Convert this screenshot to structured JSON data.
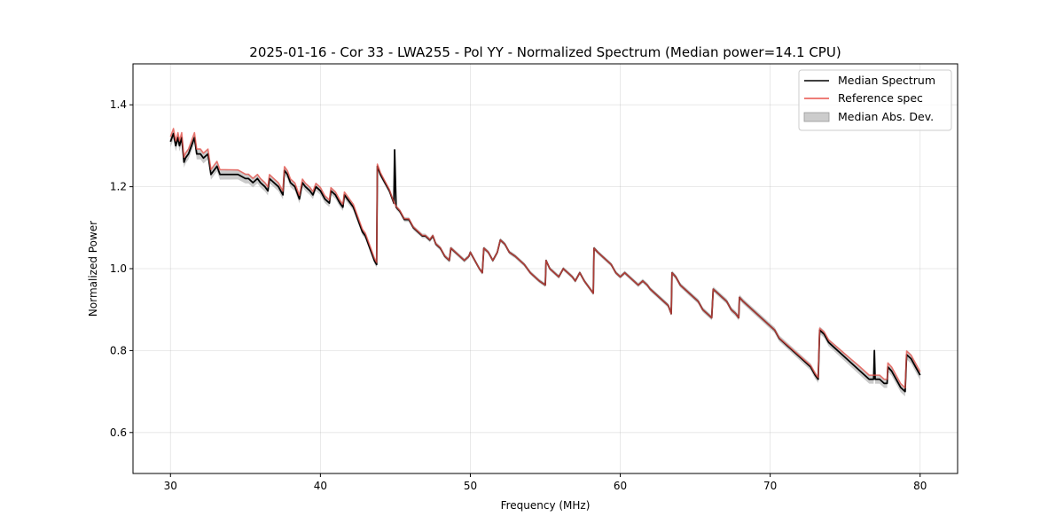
{
  "chart_data": {
    "type": "line",
    "title": "2025-01-16 - Cor 33 - LWA255 - Pol YY - Normalized Spectrum (Median power=14.1 CPU)",
    "xlabel": "Frequency (MHz)",
    "ylabel": "Normalized Power",
    "xlim": [
      27.5,
      82.5
    ],
    "ylim": [
      0.5,
      1.5
    ],
    "xticks": [
      30,
      40,
      50,
      60,
      70,
      80
    ],
    "yticks": [
      0.6,
      0.8,
      1.0,
      1.2,
      1.4
    ],
    "xtick_labels": [
      "30",
      "40",
      "50",
      "60",
      "70",
      "80"
    ],
    "ytick_labels": [
      "0.6",
      "0.8",
      "1.0",
      "1.2",
      "1.4"
    ],
    "grid": true,
    "legend_position": "top-right",
    "series": [
      {
        "name": "Median Spectrum",
        "kind": "line",
        "color": "#000000"
      },
      {
        "name": "Reference spec",
        "kind": "line",
        "color": "#e8524a"
      },
      {
        "name": "Median Abs. Dev.",
        "kind": "band",
        "color": "#bdbdbd"
      }
    ],
    "median_points": [
      [
        30.0,
        1.31
      ],
      [
        30.2,
        1.33
      ],
      [
        30.35,
        1.3
      ],
      [
        30.5,
        1.32
      ],
      [
        30.6,
        1.3
      ],
      [
        30.75,
        1.32
      ],
      [
        30.9,
        1.26
      ],
      [
        31.0,
        1.27
      ],
      [
        31.2,
        1.28
      ],
      [
        31.4,
        1.3
      ],
      [
        31.6,
        1.32
      ],
      [
        31.75,
        1.28
      ],
      [
        32.0,
        1.28
      ],
      [
        32.2,
        1.27
      ],
      [
        32.5,
        1.28
      ],
      [
        32.7,
        1.23
      ],
      [
        32.9,
        1.24
      ],
      [
        33.1,
        1.25
      ],
      [
        33.3,
        1.23
      ],
      [
        33.6,
        1.23
      ],
      [
        34.0,
        1.23
      ],
      [
        34.5,
        1.23
      ],
      [
        35.0,
        1.22
      ],
      [
        35.2,
        1.22
      ],
      [
        35.5,
        1.21
      ],
      [
        35.8,
        1.22
      ],
      [
        36.0,
        1.21
      ],
      [
        36.3,
        1.2
      ],
      [
        36.5,
        1.19
      ],
      [
        36.6,
        1.22
      ],
      [
        36.9,
        1.21
      ],
      [
        37.2,
        1.2
      ],
      [
        37.5,
        1.18
      ],
      [
        37.6,
        1.24
      ],
      [
        37.8,
        1.23
      ],
      [
        38.0,
        1.21
      ],
      [
        38.3,
        1.2
      ],
      [
        38.6,
        1.17
      ],
      [
        38.8,
        1.21
      ],
      [
        39.0,
        1.2
      ],
      [
        39.3,
        1.19
      ],
      [
        39.5,
        1.18
      ],
      [
        39.7,
        1.2
      ],
      [
        40.0,
        1.19
      ],
      [
        40.3,
        1.17
      ],
      [
        40.6,
        1.16
      ],
      [
        40.7,
        1.19
      ],
      [
        41.0,
        1.18
      ],
      [
        41.3,
        1.16
      ],
      [
        41.5,
        1.15
      ],
      [
        41.6,
        1.18
      ],
      [
        42.0,
        1.16
      ],
      [
        42.2,
        1.15
      ],
      [
        42.5,
        1.12
      ],
      [
        42.8,
        1.09
      ],
      [
        43.0,
        1.08
      ],
      [
        43.3,
        1.05
      ],
      [
        43.6,
        1.02
      ],
      [
        43.75,
        1.01
      ],
      [
        43.8,
        1.25
      ],
      [
        44.0,
        1.23
      ],
      [
        44.3,
        1.21
      ],
      [
        44.6,
        1.19
      ],
      [
        44.9,
        1.16
      ],
      [
        44.95,
        1.29
      ],
      [
        45.05,
        1.15
      ],
      [
        45.3,
        1.14
      ],
      [
        45.6,
        1.12
      ],
      [
        45.9,
        1.12
      ],
      [
        46.2,
        1.1
      ],
      [
        46.5,
        1.09
      ],
      [
        46.8,
        1.08
      ],
      [
        47.0,
        1.08
      ],
      [
        47.3,
        1.07
      ],
      [
        47.5,
        1.08
      ],
      [
        47.7,
        1.06
      ],
      [
        48.0,
        1.05
      ],
      [
        48.3,
        1.03
      ],
      [
        48.6,
        1.02
      ],
      [
        48.7,
        1.05
      ],
      [
        49.0,
        1.04
      ],
      [
        49.3,
        1.03
      ],
      [
        49.6,
        1.02
      ],
      [
        49.9,
        1.03
      ],
      [
        50.0,
        1.04
      ],
      [
        50.3,
        1.02
      ],
      [
        50.6,
        1.0
      ],
      [
        50.8,
        0.99
      ],
      [
        50.9,
        1.05
      ],
      [
        51.2,
        1.04
      ],
      [
        51.5,
        1.02
      ],
      [
        51.8,
        1.04
      ],
      [
        52.0,
        1.07
      ],
      [
        52.3,
        1.06
      ],
      [
        52.6,
        1.04
      ],
      [
        53.0,
        1.03
      ],
      [
        53.3,
        1.02
      ],
      [
        53.6,
        1.01
      ],
      [
        54.0,
        0.99
      ],
      [
        54.3,
        0.98
      ],
      [
        54.6,
        0.97
      ],
      [
        55.0,
        0.96
      ],
      [
        55.05,
        1.02
      ],
      [
        55.3,
        1.0
      ],
      [
        55.6,
        0.99
      ],
      [
        55.9,
        0.98
      ],
      [
        56.2,
        1.0
      ],
      [
        56.5,
        0.99
      ],
      [
        56.8,
        0.98
      ],
      [
        57.0,
        0.97
      ],
      [
        57.3,
        0.99
      ],
      [
        57.6,
        0.97
      ],
      [
        58.0,
        0.95
      ],
      [
        58.2,
        0.94
      ],
      [
        58.25,
        1.05
      ],
      [
        58.5,
        1.04
      ],
      [
        58.8,
        1.03
      ],
      [
        59.1,
        1.02
      ],
      [
        59.4,
        1.01
      ],
      [
        59.7,
        0.99
      ],
      [
        60.0,
        0.98
      ],
      [
        60.3,
        0.99
      ],
      [
        60.6,
        0.98
      ],
      [
        60.9,
        0.97
      ],
      [
        61.2,
        0.96
      ],
      [
        61.5,
        0.97
      ],
      [
        61.8,
        0.96
      ],
      [
        62.0,
        0.95
      ],
      [
        62.3,
        0.94
      ],
      [
        62.6,
        0.93
      ],
      [
        62.9,
        0.92
      ],
      [
        63.2,
        0.91
      ],
      [
        63.4,
        0.89
      ],
      [
        63.45,
        0.99
      ],
      [
        63.7,
        0.98
      ],
      [
        64.0,
        0.96
      ],
      [
        64.3,
        0.95
      ],
      [
        64.6,
        0.94
      ],
      [
        64.9,
        0.93
      ],
      [
        65.2,
        0.92
      ],
      [
        65.5,
        0.9
      ],
      [
        65.8,
        0.89
      ],
      [
        66.1,
        0.88
      ],
      [
        66.2,
        0.95
      ],
      [
        66.5,
        0.94
      ],
      [
        66.8,
        0.93
      ],
      [
        67.1,
        0.92
      ],
      [
        67.4,
        0.9
      ],
      [
        67.7,
        0.89
      ],
      [
        67.9,
        0.88
      ],
      [
        67.95,
        0.93
      ],
      [
        68.2,
        0.92
      ],
      [
        68.5,
        0.91
      ],
      [
        68.8,
        0.9
      ],
      [
        69.1,
        0.89
      ],
      [
        69.4,
        0.88
      ],
      [
        69.7,
        0.87
      ],
      [
        70.0,
        0.86
      ],
      [
        70.3,
        0.85
      ],
      [
        70.6,
        0.83
      ],
      [
        70.9,
        0.82
      ],
      [
        71.2,
        0.81
      ],
      [
        71.5,
        0.8
      ],
      [
        71.8,
        0.79
      ],
      [
        72.1,
        0.78
      ],
      [
        72.4,
        0.77
      ],
      [
        72.7,
        0.76
      ],
      [
        73.0,
        0.74
      ],
      [
        73.2,
        0.73
      ],
      [
        73.3,
        0.85
      ],
      [
        73.6,
        0.84
      ],
      [
        73.9,
        0.82
      ],
      [
        74.2,
        0.81
      ],
      [
        74.5,
        0.8
      ],
      [
        74.8,
        0.79
      ],
      [
        75.1,
        0.78
      ],
      [
        75.4,
        0.77
      ],
      [
        75.7,
        0.76
      ],
      [
        76.0,
        0.75
      ],
      [
        76.3,
        0.74
      ],
      [
        76.6,
        0.73
      ],
      [
        76.9,
        0.73
      ],
      [
        76.95,
        0.8
      ],
      [
        77.0,
        0.73
      ],
      [
        77.3,
        0.73
      ],
      [
        77.6,
        0.72
      ],
      [
        77.8,
        0.72
      ],
      [
        77.85,
        0.76
      ],
      [
        78.1,
        0.75
      ],
      [
        78.4,
        0.73
      ],
      [
        78.7,
        0.71
      ],
      [
        79.0,
        0.7
      ],
      [
        79.1,
        0.79
      ],
      [
        79.4,
        0.78
      ],
      [
        79.7,
        0.76
      ],
      [
        80.0,
        0.74
      ]
    ],
    "reference_offsets": [
      [
        30.0,
        0.012
      ],
      [
        33.0,
        0.012
      ],
      [
        36.0,
        0.01
      ],
      [
        40.0,
        0.008
      ],
      [
        43.5,
        0.006
      ],
      [
        45.0,
        0.002
      ],
      [
        50.0,
        0.0
      ],
      [
        60.0,
        0.0
      ],
      [
        70.0,
        0.0
      ],
      [
        73.0,
        0.004
      ],
      [
        76.0,
        0.01
      ],
      [
        78.0,
        0.01
      ],
      [
        80.0,
        0.008
      ]
    ],
    "mad_widths": [
      [
        30.0,
        0.014
      ],
      [
        35.0,
        0.012
      ],
      [
        40.0,
        0.01
      ],
      [
        43.5,
        0.008
      ],
      [
        45.0,
        0.006
      ],
      [
        50.0,
        0.005
      ],
      [
        60.0,
        0.005
      ],
      [
        70.0,
        0.007
      ],
      [
        75.0,
        0.01
      ],
      [
        80.0,
        0.012
      ]
    ]
  }
}
